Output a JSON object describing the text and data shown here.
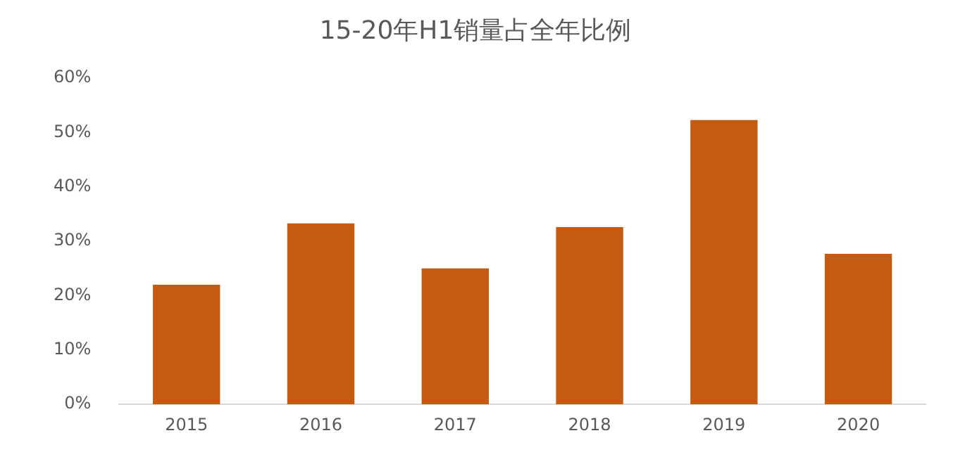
{
  "chart_data": {
    "type": "bar",
    "title": "15-20年H1销量占全年比例",
    "categories": [
      "2015",
      "2016",
      "2017",
      "2018",
      "2019",
      "2020"
    ],
    "values": [
      22,
      33.3,
      25,
      32.6,
      52.3,
      27.7
    ],
    "color": "#c55a11",
    "ylim": [
      0,
      60
    ],
    "yticks": [
      {
        "value": 0,
        "label": "0%"
      },
      {
        "value": 10,
        "label": "10%"
      },
      {
        "value": 20,
        "label": "20%"
      },
      {
        "value": 30,
        "label": "30%"
      },
      {
        "value": 40,
        "label": "40%"
      },
      {
        "value": 50,
        "label": "50%"
      },
      {
        "value": 60,
        "label": "60%"
      }
    ],
    "grid": false,
    "legend": false
  }
}
